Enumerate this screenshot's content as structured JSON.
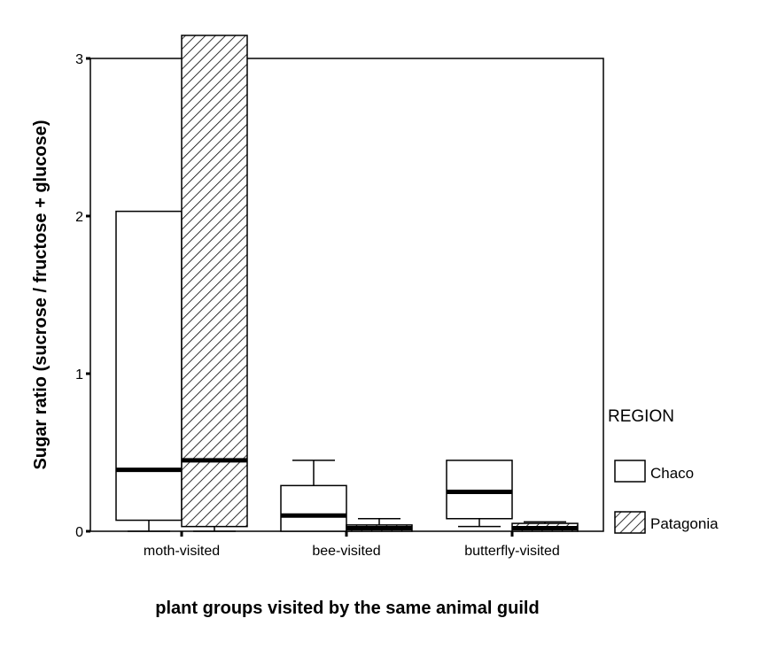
{
  "chart_data": {
    "type": "boxplot",
    "xlabel": "plant groups visited by the same animal guild",
    "ylabel": "Sugar ratio (sucrose / fructose + glucose)",
    "ylim": [
      0,
      3
    ],
    "yticks": [
      0,
      1,
      2,
      3
    ],
    "categories": [
      "moth-visited",
      "bee-visited",
      "butterfly-visited"
    ],
    "legend": {
      "title": "REGION",
      "placement": "right"
    },
    "series": [
      {
        "name": "Chaco",
        "pattern": "none",
        "boxes": [
          {
            "category": "moth-visited",
            "q1": 0.07,
            "median": 0.39,
            "q3": 2.03,
            "whisker_low": 0.0,
            "whisker_high": 2.03
          },
          {
            "category": "bee-visited",
            "q1": 0.0,
            "median": 0.1,
            "q3": 0.29,
            "whisker_low": 0.0,
            "whisker_high": 0.45
          },
          {
            "category": "butterfly-visited",
            "q1": 0.08,
            "median": 0.25,
            "q3": 0.45,
            "whisker_low": 0.03,
            "whisker_high": 0.45
          }
        ]
      },
      {
        "name": "Patagonia",
        "pattern": "hatched",
        "boxes": [
          {
            "category": "moth-visited",
            "q1": 0.03,
            "median": 0.45,
            "q3": 3.15,
            "whisker_low": 0.0,
            "whisker_high": 3.15
          },
          {
            "category": "bee-visited",
            "q1": 0.0,
            "median": 0.02,
            "q3": 0.04,
            "whisker_low": 0.0,
            "whisker_high": 0.08
          },
          {
            "category": "butterfly-visited",
            "q1": 0.0,
            "median": 0.02,
            "q3": 0.05,
            "whisker_low": 0.0,
            "whisker_high": 0.06
          }
        ]
      }
    ],
    "colors": {
      "line": "#000000",
      "fill": "#ffffff"
    }
  }
}
